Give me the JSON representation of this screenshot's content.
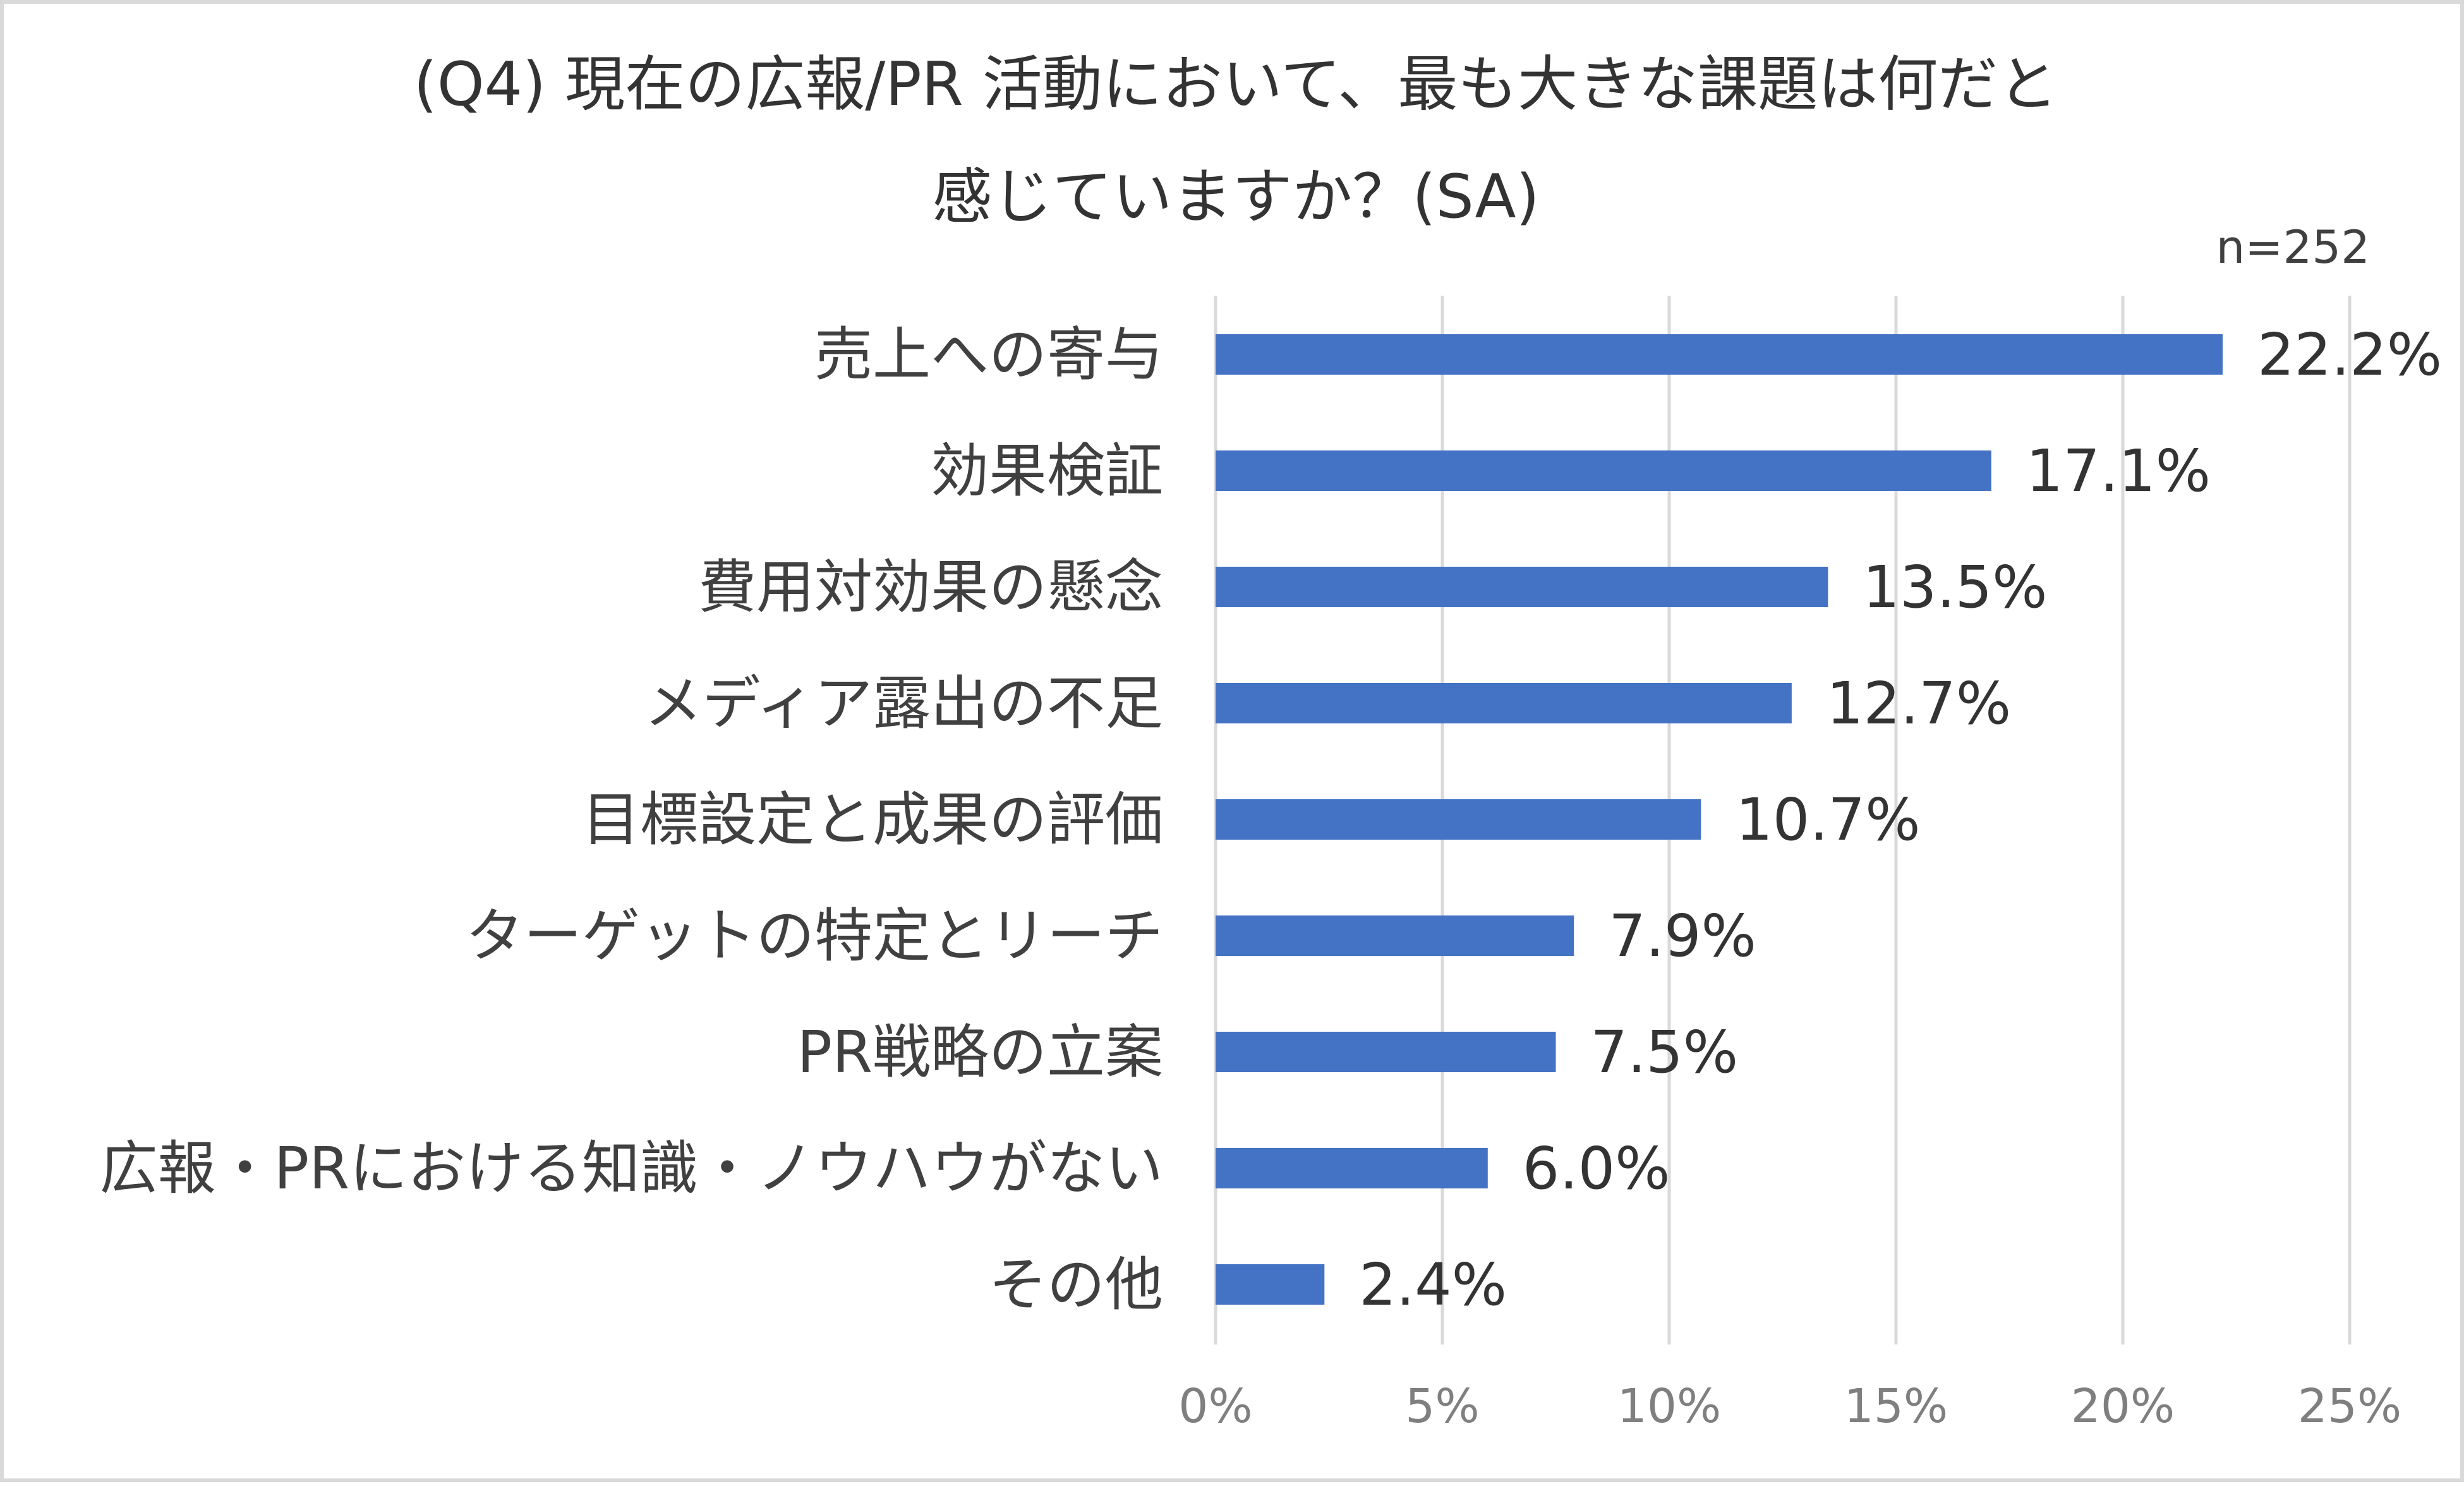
{
  "chart_data": {
    "type": "bar",
    "orientation": "horizontal",
    "title_line1": "(Q4) 現在の広報/PR 活動において、最も大きな課題は何だと",
    "title_line2": "感じていますか？(SA)",
    "note": "n=252",
    "categories": [
      "売上への寄与",
      "効果検証",
      "費用対効果の懸念",
      "メディア露出の不足",
      "目標設定と成果の評価",
      "ターゲットの特定とリーチ",
      "PR戦略の立案",
      "広報・PRにおける知識・ノウハウがない",
      "その他"
    ],
    "values": [
      22.2,
      17.1,
      13.5,
      12.7,
      10.7,
      7.9,
      7.5,
      6.0,
      2.4
    ],
    "value_labels": [
      "22.2%",
      "17.1%",
      "13.5%",
      "12.7%",
      "10.7%",
      "7.9%",
      "7.5%",
      "6.0%",
      "2.4%"
    ],
    "xlim": [
      0,
      25
    ],
    "xticks": [
      0,
      5,
      10,
      15,
      20,
      25
    ],
    "xtick_labels": [
      "0%",
      "5%",
      "10%",
      "15%",
      "20%",
      "25%"
    ],
    "xlabel": "",
    "ylabel": "",
    "grid": true,
    "legend": "none",
    "bar_color": "#4472c4",
    "grid_color": "#d9d9d9"
  }
}
